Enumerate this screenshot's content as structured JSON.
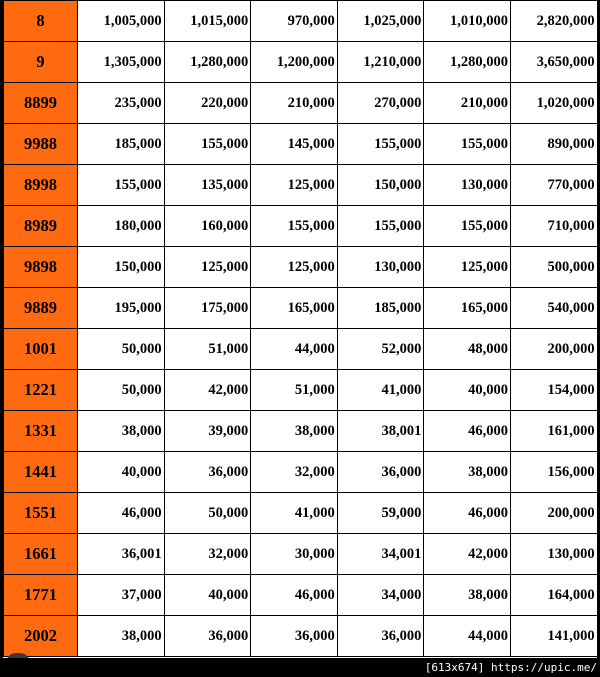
{
  "table": {
    "rows": [
      {
        "code": "8",
        "values": [
          "1,005,000",
          "1,015,000",
          "970,000",
          "1,025,000",
          "1,010,000",
          "2,820,000"
        ]
      },
      {
        "code": "9",
        "values": [
          "1,305,000",
          "1,280,000",
          "1,200,000",
          "1,210,000",
          "1,280,000",
          "3,650,000"
        ]
      },
      {
        "code": "8899",
        "values": [
          "235,000",
          "220,000",
          "210,000",
          "270,000",
          "210,000",
          "1,020,000"
        ]
      },
      {
        "code": "9988",
        "values": [
          "185,000",
          "155,000",
          "145,000",
          "155,000",
          "155,000",
          "890,000"
        ]
      },
      {
        "code": "8998",
        "values": [
          "155,000",
          "135,000",
          "125,000",
          "150,000",
          "130,000",
          "770,000"
        ]
      },
      {
        "code": "8989",
        "values": [
          "180,000",
          "160,000",
          "155,000",
          "155,000",
          "155,000",
          "710,000"
        ]
      },
      {
        "code": "9898",
        "values": [
          "150,000",
          "125,000",
          "125,000",
          "130,000",
          "125,000",
          "500,000"
        ]
      },
      {
        "code": "9889",
        "values": [
          "195,000",
          "175,000",
          "165,000",
          "185,000",
          "165,000",
          "540,000"
        ]
      },
      {
        "code": "1001",
        "values": [
          "50,000",
          "51,000",
          "44,000",
          "52,000",
          "48,000",
          "200,000"
        ]
      },
      {
        "code": "1221",
        "values": [
          "50,000",
          "42,000",
          "51,000",
          "41,000",
          "40,000",
          "154,000"
        ]
      },
      {
        "code": "1331",
        "values": [
          "38,000",
          "39,000",
          "38,000",
          "38,001",
          "46,000",
          "161,000"
        ]
      },
      {
        "code": "1441",
        "values": [
          "40,000",
          "36,000",
          "32,000",
          "36,000",
          "38,000",
          "156,000"
        ]
      },
      {
        "code": "1551",
        "values": [
          "46,000",
          "50,000",
          "41,000",
          "59,000",
          "46,000",
          "200,000"
        ]
      },
      {
        "code": "1661",
        "values": [
          "36,001",
          "32,000",
          "30,000",
          "34,001",
          "42,000",
          "130,000"
        ]
      },
      {
        "code": "1771",
        "values": [
          "37,000",
          "40,000",
          "46,000",
          "34,000",
          "38,000",
          "164,000"
        ]
      },
      {
        "code": "2002",
        "values": [
          "38,000",
          "36,000",
          "36,000",
          "36,000",
          "44,000",
          "141,000"
        ]
      }
    ]
  },
  "statusbar": {
    "text": "[613x674] https://upic.me/"
  },
  "colors": {
    "code_cell": "#ff6a10",
    "grid": "#000000"
  }
}
